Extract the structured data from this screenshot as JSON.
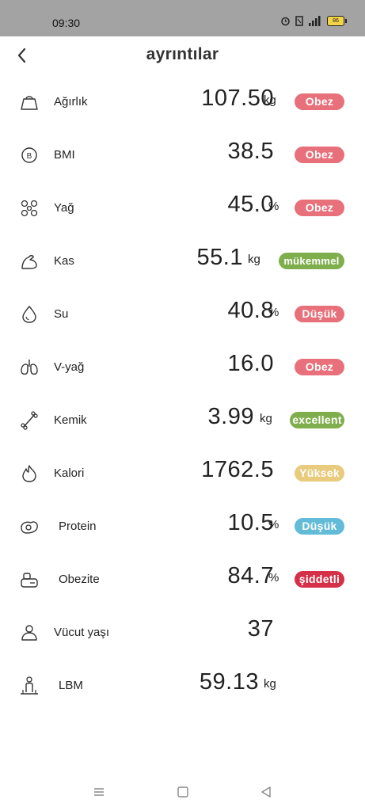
{
  "status_bar": {
    "time": "09:30",
    "battery": "86"
  },
  "header": {
    "title": "ayrıntılar"
  },
  "colors": {
    "red": "#e8707a",
    "green": "#7fae4c",
    "yellow": "#e8cb7c",
    "blue": "#62bbd7",
    "crimson": "#d53048"
  },
  "rows": [
    {
      "label": "Ağırlık",
      "value": "107.50",
      "unit": "kg",
      "badge": "Obez",
      "badge_color": "#e8707a",
      "icon": "weight-icon"
    },
    {
      "label": "BMI",
      "value": "38.5",
      "unit": "",
      "badge": "Obez",
      "badge_color": "#e8707a",
      "icon": "bmi-icon"
    },
    {
      "label": "Yağ",
      "value": "45.0",
      "unit": "%",
      "badge": "Obez",
      "badge_color": "#e8707a",
      "icon": "fat-icon"
    },
    {
      "label": "Kas",
      "value": "55.1",
      "unit": "kg",
      "badge": "mükemmel",
      "badge_color": "#7fae4c",
      "icon": "muscle-icon"
    },
    {
      "label": "Su",
      "value": "40.8",
      "unit": "%",
      "badge": "Düşük",
      "badge_color": "#e8707a",
      "icon": "water-drop-icon"
    },
    {
      "label": "V-yağ",
      "value": "16.0",
      "unit": "",
      "badge": "Obez",
      "badge_color": "#e8707a",
      "icon": "lungs-icon"
    },
    {
      "label": "Kemik",
      "value": "3.99",
      "unit": "kg",
      "badge": "excellent",
      "badge_color": "#7fae4c",
      "icon": "bone-icon"
    },
    {
      "label": "Kalori",
      "value": "1762.5",
      "unit": "",
      "badge": "Yüksek",
      "badge_color": "#e8cb7c",
      "icon": "flame-icon"
    },
    {
      "label": "Protein",
      "value": "10.5",
      "unit": "%",
      "badge": "Düşük",
      "badge_color": "#62bbd7",
      "icon": "protein-icon"
    },
    {
      "label": "Obezite",
      "value": "84.7",
      "unit": "%",
      "badge": "şiddetli",
      "badge_color": "#d53048",
      "icon": "obesity-icon"
    },
    {
      "label": "Vücut yaşı",
      "value": "37",
      "unit": "",
      "badge": "",
      "badge_color": "",
      "icon": "body-age-icon"
    },
    {
      "label": "LBM",
      "value": "59.13",
      "unit": "kg",
      "badge": "",
      "badge_color": "",
      "icon": "lean-mass-icon"
    }
  ],
  "nav": {
    "buttons": [
      "menu-icon",
      "home-icon",
      "back-triangle-icon"
    ]
  }
}
